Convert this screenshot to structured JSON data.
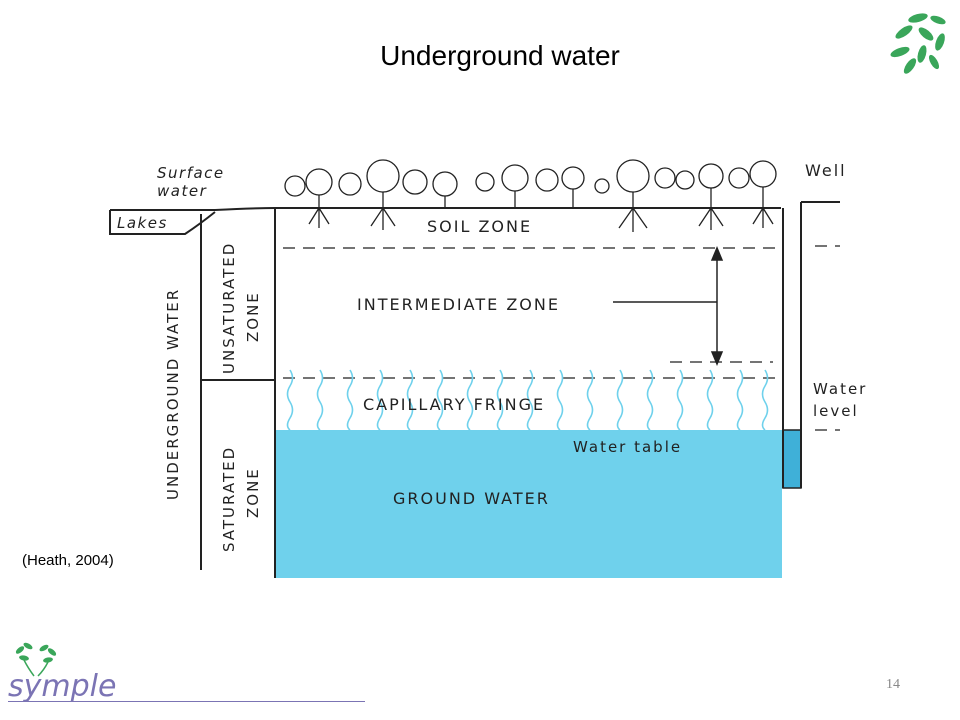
{
  "slide": {
    "title": "Underground water",
    "citation": "(Heath, 2004)",
    "page_number": "14",
    "brand_name": "symple"
  },
  "colors": {
    "water": "#6fd1ec",
    "leaf_green": "#3aa65a",
    "brand_purple": "#7b74b4",
    "line": "#222222"
  },
  "diagram": {
    "labels": {
      "surface_water": [
        "Surface",
        "water"
      ],
      "lakes": "Lakes",
      "well": "Well",
      "soil_zone": "SOIL ZONE",
      "intermediate_zone": "INTERMEDIATE ZONE",
      "capillary_fringe": "CAPILLARY FRINGE",
      "water_table": "Water table",
      "ground_water": "GROUND WATER",
      "water_level": [
        "Water",
        "level"
      ],
      "underground_water": "UNDERGROUND WATER",
      "unsaturated_zone": [
        "UNSATURATED",
        "ZONE"
      ],
      "saturated_zone": [
        "SATURATED",
        "ZONE"
      ]
    }
  }
}
